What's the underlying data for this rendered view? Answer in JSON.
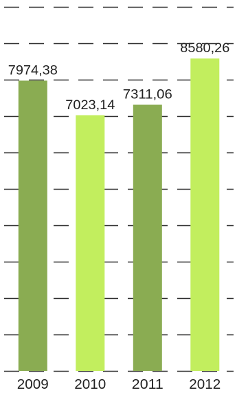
{
  "chart_data": {
    "type": "bar",
    "categories": [
      "2009",
      "2010",
      "2011",
      "2012"
    ],
    "values": [
      7974.38,
      7023.14,
      7311.06,
      8580.26
    ],
    "value_labels": [
      "7974,38",
      "7023,14",
      "7311,06",
      "8580,26"
    ],
    "ylim": [
      0,
      10000
    ],
    "grid": true,
    "grid_style": "dashed",
    "colors": [
      "#8aac52",
      "#c2ee5e",
      "#8aac52",
      "#c2ee5e"
    ],
    "title": "",
    "xlabel": "",
    "ylabel": ""
  }
}
